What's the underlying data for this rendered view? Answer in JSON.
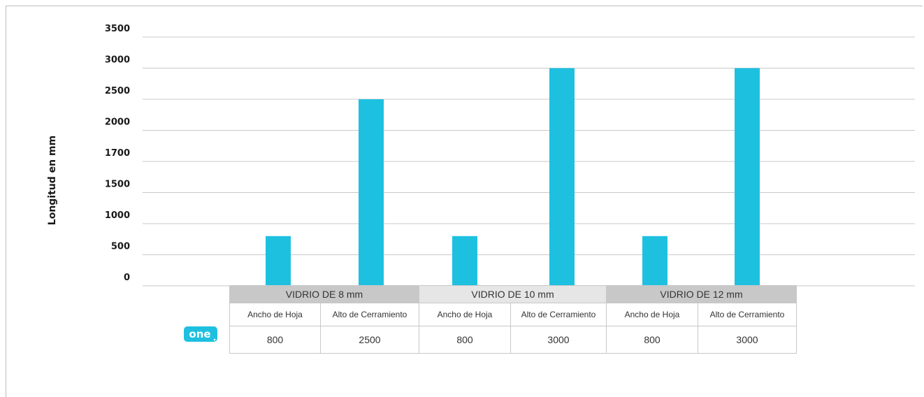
{
  "chart_data": {
    "type": "bar",
    "ylabel": "Longitud en mm",
    "y_tick_labels": [
      "0",
      "500",
      "1000",
      "1500",
      "1700",
      "2000",
      "2500",
      "3000",
      "3500"
    ],
    "grid": true,
    "color": "#1ec0e0",
    "groups": [
      {
        "label": "VIDRIO DE 8 mm",
        "categories": [
          "Ancho de Hoja",
          "Alto de Cerramiento"
        ],
        "values": [
          800,
          2500
        ]
      },
      {
        "label": "VIDRIO DE 10 mm",
        "categories": [
          "Ancho de Hoja",
          "Alto de Cerramiento"
        ],
        "values": [
          800,
          3000
        ]
      },
      {
        "label": "VIDRIO DE 12 mm",
        "categories": [
          "Ancho de Hoja",
          "Alto de Cerramiento"
        ],
        "values": [
          800,
          3000
        ]
      }
    ]
  },
  "table": {
    "groups": [
      "VIDRIO DE 8 mm",
      "VIDRIO DE 10 mm",
      "VIDRIO DE 12 mm"
    ],
    "subheaders": [
      "Ancho de Hoja",
      "Alto de Cerramiento",
      "Ancho de Hoja",
      "Alto de Cerramiento",
      "Ancho de Hoja",
      "Alto de Cerramiento"
    ],
    "values": [
      "800",
      "2500",
      "800",
      "3000",
      "800",
      "3000"
    ]
  },
  "logo": {
    "text": "one",
    "color": "#1ec0e0"
  }
}
